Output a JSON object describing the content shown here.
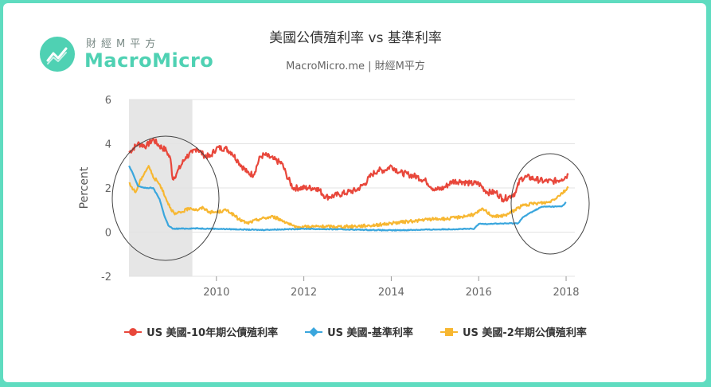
{
  "brand": {
    "name_cn": "財經M平方",
    "name_en": "MacroMicro"
  },
  "chart_data": {
    "type": "line",
    "title": "美國公債殖利率 vs 基準利率",
    "subtitle": "MacroMicro.me | 財經M平方",
    "xlabel": "",
    "ylabel": "Percent",
    "xlim": [
      2008.0,
      2018.2
    ],
    "ylim": [
      -2,
      6
    ],
    "yticks": [
      -2,
      0,
      2,
      4,
      6
    ],
    "xticks": [
      2010,
      2012,
      2014,
      2016,
      2018
    ],
    "grid": "horizontal",
    "legend_position": "bottom",
    "shaded_region": [
      2008.0,
      2009.45
    ],
    "series": [
      {
        "name": "US 美國-10年期公債殖利率",
        "color": "#e8473b",
        "marker": "circle",
        "x": [
          2008.0,
          2008.2,
          2008.4,
          2008.55,
          2008.7,
          2008.85,
          2008.95,
          2009.0,
          2009.1,
          2009.3,
          2009.45,
          2009.55,
          2009.7,
          2009.85,
          2010.0,
          2010.2,
          2010.35,
          2010.5,
          2010.7,
          2010.85,
          2011.0,
          2011.1,
          2011.3,
          2011.5,
          2011.6,
          2011.75,
          2011.9,
          2012.1,
          2012.3,
          2012.5,
          2012.6,
          2012.8,
          2013.0,
          2013.2,
          2013.4,
          2013.55,
          2013.7,
          2013.85,
          2014.0,
          2014.2,
          2014.4,
          2014.6,
          2014.8,
          2015.0,
          2015.2,
          2015.4,
          2015.6,
          2015.8,
          2016.0,
          2016.2,
          2016.4,
          2016.55,
          2016.7,
          2016.85,
          2016.95,
          2017.1,
          2017.3,
          2017.5,
          2017.7,
          2017.9,
          2018.05
        ],
        "y": [
          3.6,
          4.0,
          3.9,
          4.2,
          3.9,
          3.7,
          3.3,
          2.4,
          2.7,
          3.4,
          3.6,
          3.8,
          3.5,
          3.4,
          3.8,
          3.8,
          3.6,
          3.2,
          2.7,
          2.6,
          3.4,
          3.5,
          3.3,
          3.1,
          2.6,
          2.0,
          2.0,
          2.0,
          2.0,
          1.6,
          1.6,
          1.7,
          1.8,
          1.9,
          2.2,
          2.6,
          2.8,
          2.8,
          3.0,
          2.7,
          2.6,
          2.5,
          2.3,
          1.9,
          2.0,
          2.3,
          2.3,
          2.2,
          2.2,
          1.8,
          1.8,
          1.5,
          1.6,
          1.8,
          2.4,
          2.5,
          2.4,
          2.3,
          2.3,
          2.4,
          2.6
        ]
      },
      {
        "name": "US 美國-基準利率",
        "color": "#3aa6dd",
        "marker": "diamond",
        "x": [
          2008.0,
          2008.1,
          2008.2,
          2008.35,
          2008.55,
          2008.7,
          2008.8,
          2008.9,
          2009.0,
          2009.5,
          2010.0,
          2011.0,
          2012.0,
          2013.0,
          2014.0,
          2015.0,
          2015.9,
          2016.0,
          2016.9,
          2017.0,
          2017.2,
          2017.45,
          2017.9,
          2018.0
        ],
        "y": [
          3.0,
          2.6,
          2.1,
          2.0,
          2.0,
          1.5,
          0.8,
          0.3,
          0.15,
          0.17,
          0.15,
          0.1,
          0.15,
          0.12,
          0.08,
          0.12,
          0.15,
          0.37,
          0.4,
          0.65,
          0.9,
          1.15,
          1.16,
          1.35
        ]
      },
      {
        "name": "US 美國-2年期公債殖利率",
        "color": "#f7b731",
        "marker": "square",
        "x": [
          2008.0,
          2008.15,
          2008.3,
          2008.45,
          2008.55,
          2008.65,
          2008.75,
          2008.85,
          2008.95,
          2009.05,
          2009.2,
          2009.4,
          2009.55,
          2009.7,
          2009.85,
          2010.0,
          2010.25,
          2010.5,
          2010.7,
          2011.0,
          2011.3,
          2011.6,
          2011.8,
          2012.0,
          2012.5,
          2013.0,
          2013.5,
          2013.8,
          2014.0,
          2014.5,
          2015.0,
          2015.3,
          2015.6,
          2015.9,
          2016.1,
          2016.3,
          2016.5,
          2016.7,
          2016.9,
          2017.0,
          2017.3,
          2017.6,
          2017.8,
          2018.05
        ],
        "y": [
          2.2,
          1.8,
          2.5,
          3.0,
          2.5,
          2.3,
          2.0,
          1.5,
          1.1,
          0.8,
          0.9,
          1.1,
          1.0,
          1.1,
          0.9,
          0.9,
          1.0,
          0.6,
          0.4,
          0.6,
          0.7,
          0.45,
          0.2,
          0.25,
          0.25,
          0.25,
          0.3,
          0.35,
          0.4,
          0.5,
          0.6,
          0.6,
          0.7,
          0.8,
          1.05,
          0.75,
          0.7,
          0.85,
          1.1,
          1.2,
          1.3,
          1.35,
          1.6,
          2.0
        ]
      }
    ]
  }
}
